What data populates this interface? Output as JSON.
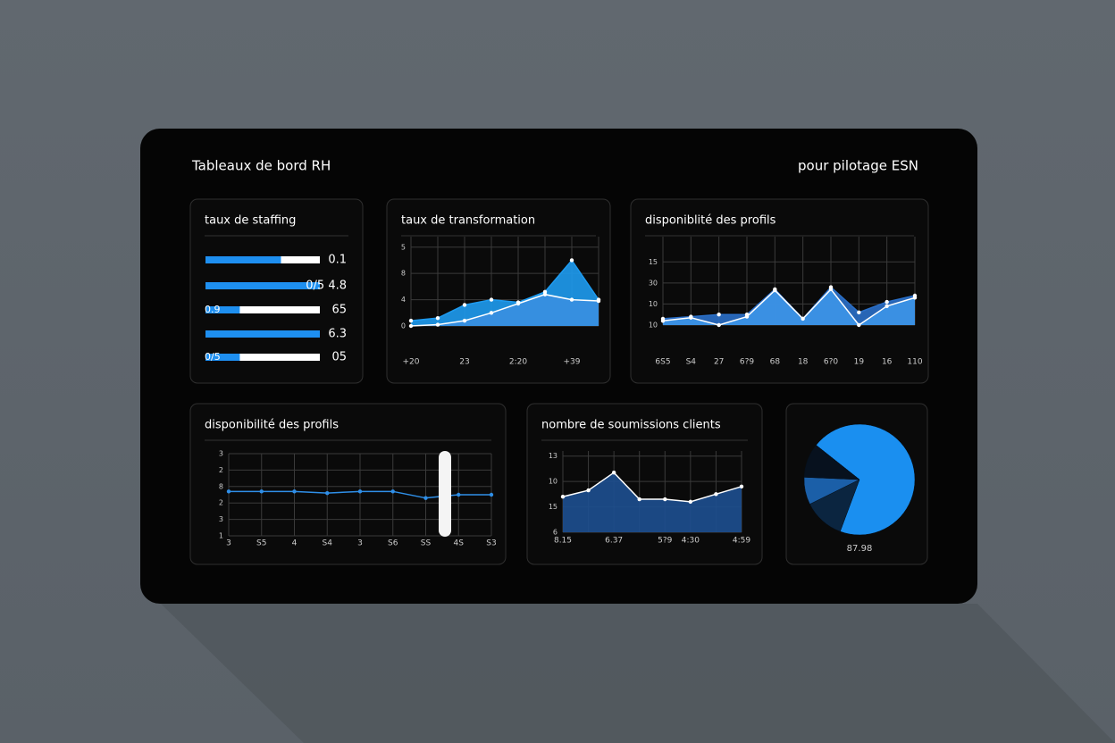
{
  "header": {
    "title": "Tableaux de bord RH",
    "subtitle": "pour pilotage ESN"
  },
  "chart_data": [
    {
      "type": "progress",
      "title": "taux de staffing",
      "categories": [
        null,
        null,
        "0.9",
        null,
        "0/5"
      ],
      "right_labels": [
        "0.1",
        "0/5  4.8",
        "65",
        "6.3",
        "05"
      ],
      "values": [
        66,
        100,
        30,
        100,
        30
      ],
      "color": "#1e8ff0",
      "track_color": "#ffffff"
    },
    {
      "type": "area",
      "title": "taux de transformation",
      "categories": [
        "+20",
        null,
        "23",
        null,
        "2:20",
        null,
        "+39",
        null
      ],
      "ylim": [
        0,
        3.4
      ],
      "yticks": [
        {
          "value": 0,
          "label": "0"
        },
        {
          "value": 1,
          "label": "4"
        },
        {
          "value": 2,
          "label": "8"
        },
        {
          "value": 3,
          "label": "5"
        }
      ],
      "grid": true,
      "series": [
        {
          "color": "#1e9bf0",
          "values": [
            0.2,
            0.3,
            0.8,
            1.0,
            0.9,
            1.3,
            2.5,
            1.0
          ]
        },
        {
          "color": "#3a8fe0",
          "values": [
            0,
            0.05,
            0.2,
            0.5,
            0.85,
            1.2,
            1.0,
            0.95
          ]
        }
      ]
    },
    {
      "type": "area",
      "title": "disponiblité des profils",
      "categories": [
        "6S5",
        "S4",
        "27",
        "6?9",
        "68",
        "18",
        "6?0",
        "19",
        "16",
        "110"
      ],
      "ylim": [
        0,
        4.2
      ],
      "yticks": [
        {
          "value": 0,
          "label": "10"
        },
        {
          "value": 1,
          "label": "10"
        },
        {
          "value": 2,
          "label": "30"
        },
        {
          "value": 3,
          "label": "15"
        }
      ],
      "grid": true,
      "series": [
        {
          "color": "#2a6fc8",
          "values": [
            0.3,
            0.4,
            0.5,
            0.5,
            1.7,
            0.3,
            1.8,
            0.6,
            1.1,
            1.4
          ]
        },
        {
          "color": "#3d95e8",
          "values": [
            0.2,
            0.35,
            0.0,
            0.4,
            1.65,
            0.3,
            1.7,
            0.0,
            0.9,
            1.3
          ]
        }
      ]
    },
    {
      "type": "line",
      "title": "disponibilité des profils",
      "categories": [
        "3",
        "S5",
        "4",
        "S4",
        "3",
        "S6",
        "SS",
        "4S",
        "S3"
      ],
      "ylim": [
        0,
        5
      ],
      "yticks": [
        {
          "value": 0,
          "label": "1"
        },
        {
          "value": 1,
          "label": "3"
        },
        {
          "value": 2,
          "label": "2"
        },
        {
          "value": 3,
          "label": "8"
        },
        {
          "value": 4,
          "label": "2"
        },
        {
          "value": 5,
          "label": "3"
        }
      ],
      "grid": true,
      "series": [
        {
          "color": "#2f8fe8",
          "values": [
            2.7,
            2.7,
            2.7,
            2.6,
            2.7,
            2.7,
            2.3,
            2.5,
            2.5
          ]
        }
      ]
    },
    {
      "type": "area",
      "title": "nombre de soumissions clients",
      "categories": [
        "8.15",
        null,
        "6.37",
        null,
        "5?9",
        "4:30",
        null,
        "4:59"
      ],
      "ylim": [
        0,
        3.2
      ],
      "yticks": [
        {
          "value": 0,
          "label": "6"
        },
        {
          "value": 1,
          "label": "15"
        },
        {
          "value": 2,
          "label": "10"
        },
        {
          "value": 3,
          "label": "13"
        }
      ],
      "grid": true,
      "series": [
        {
          "color": "#1d4f90",
          "values": [
            1.4,
            1.65,
            2.35,
            1.3,
            1.3,
            1.2,
            1.5,
            1.8
          ]
        }
      ]
    },
    {
      "type": "pie",
      "label": "87.98",
      "values": [
        70,
        12,
        8,
        10
      ],
      "colors": [
        "#1a8ff0",
        "#0b2540",
        "#1b5fa8",
        "#07111e"
      ]
    }
  ]
}
